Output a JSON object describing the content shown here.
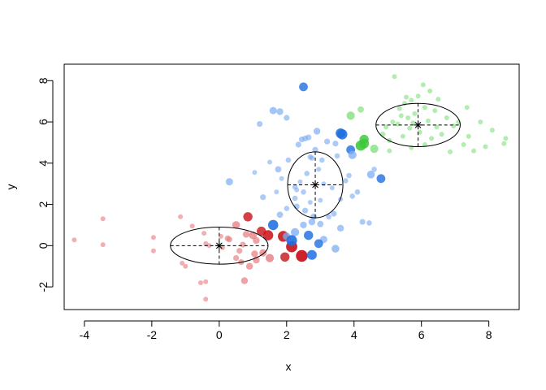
{
  "chart_data": {
    "type": "scatter",
    "xlabel": "x",
    "ylabel": "y",
    "xlim": [
      -4.6,
      8.9
    ],
    "ylim": [
      -3.1,
      8.8
    ],
    "xticks": [
      "-4",
      "-2",
      "0",
      "2",
      "4",
      "6",
      "8"
    ],
    "yticks": [
      "-2",
      "0",
      "2",
      "4",
      "6",
      "8"
    ],
    "xtick_values": [
      -4,
      -2,
      0,
      2,
      4,
      6,
      8
    ],
    "ytick_values": [
      -2,
      0,
      2,
      4,
      6,
      8
    ],
    "grid": false,
    "colors": {
      "red_light": "#E8797D",
      "red_dark": "#C9161D",
      "blue_light": "#7FAEF2",
      "blue_dark": "#1F6FE0",
      "green_light": "#7EE07C",
      "green_dark": "#3CC83A"
    },
    "ellipses": [
      {
        "center": [
          0.0,
          0.0
        ],
        "semi_x": 1.45,
        "semi_y": 0.9
      },
      {
        "center": [
          2.85,
          2.95
        ],
        "semi_x": 0.82,
        "semi_y": 1.6
      },
      {
        "center": [
          5.9,
          5.85
        ],
        "semi_x": 1.25,
        "semi_y": 1.05
      }
    ],
    "series": [
      {
        "group": "red",
        "points": [
          [
            -4.3,
            0.28,
            0.3
          ],
          [
            -3.45,
            1.3,
            0.3
          ],
          [
            -3.45,
            0.05,
            0.3
          ],
          [
            -1.95,
            0.4,
            0.3
          ],
          [
            -1.95,
            -0.25,
            0.3
          ],
          [
            -1.15,
            1.4,
            0.3
          ],
          [
            -1.1,
            -0.85,
            0.3
          ],
          [
            -1.0,
            -1.0,
            0.3
          ],
          [
            -0.8,
            0.95,
            0.3
          ],
          [
            -0.45,
            0.6,
            0.3
          ],
          [
            -0.4,
            0.1,
            0.3
          ],
          [
            -0.3,
            0.0,
            0.3
          ],
          [
            -0.55,
            -1.8,
            0.3
          ],
          [
            -0.4,
            -1.75,
            0.3
          ],
          [
            -0.4,
            -2.6,
            0.3
          ],
          [
            0.05,
            0.45,
            0.3
          ],
          [
            0.1,
            -0.1,
            0.3
          ],
          [
            0.25,
            0.35,
            0.4
          ],
          [
            0.3,
            0.3,
            0.4
          ],
          [
            0.5,
            -0.6,
            0.4
          ],
          [
            0.6,
            -0.25,
            0.4
          ],
          [
            0.65,
            -0.8,
            0.4
          ],
          [
            0.7,
            0.05,
            0.4
          ],
          [
            0.75,
            -1.7,
            0.5
          ],
          [
            0.8,
            0.55,
            0.5
          ],
          [
            0.9,
            -1.0,
            0.5
          ],
          [
            1.05,
            -0.4,
            0.5
          ],
          [
            1.1,
            -0.7,
            0.5
          ],
          [
            1.1,
            0.25,
            0.5
          ],
          [
            1.3,
            -0.35,
            0.55
          ],
          [
            0.5,
            1.0,
            0.6
          ],
          [
            0.85,
            1.4,
            0.75
          ],
          [
            1.0,
            0.5,
            0.6
          ],
          [
            1.25,
            0.7,
            0.75
          ],
          [
            1.5,
            -0.6,
            0.65
          ],
          [
            1.45,
            0.5,
            0.85
          ],
          [
            1.9,
            0.45,
            0.9
          ],
          [
            1.95,
            -0.55,
            0.75
          ],
          [
            2.15,
            -0.05,
            0.95
          ],
          [
            2.45,
            -0.5,
            1.0
          ]
        ]
      },
      {
        "group": "blue",
        "points": [
          [
            0.3,
            3.1,
            0.55
          ],
          [
            1.05,
            3.55,
            0.3
          ],
          [
            1.2,
            5.9,
            0.4
          ],
          [
            1.3,
            2.35,
            0.4
          ],
          [
            1.5,
            4.05,
            0.3
          ],
          [
            1.6,
            6.55,
            0.55
          ],
          [
            1.75,
            3.7,
            0.45
          ],
          [
            1.8,
            6.5,
            0.5
          ],
          [
            1.85,
            3.25,
            0.3
          ],
          [
            2.0,
            6.2,
            0.4
          ],
          [
            2.05,
            4.15,
            0.35
          ],
          [
            2.25,
            2.85,
            0.35
          ],
          [
            2.35,
            4.9,
            0.4
          ],
          [
            2.45,
            5.15,
            0.4
          ],
          [
            2.55,
            5.2,
            0.4
          ],
          [
            2.65,
            5.25,
            0.4
          ],
          [
            2.7,
            4.3,
            0.35
          ],
          [
            2.75,
            4.25,
            0.35
          ],
          [
            2.85,
            4.65,
            0.4
          ],
          [
            2.9,
            5.55,
            0.5
          ],
          [
            2.95,
            3.7,
            0.3
          ],
          [
            3.05,
            4.15,
            0.35
          ],
          [
            3.2,
            5.05,
            0.4
          ],
          [
            3.35,
            2.8,
            0.3
          ],
          [
            3.45,
            4.95,
            0.4
          ],
          [
            3.5,
            4.35,
            0.35
          ],
          [
            3.6,
            2.25,
            0.3
          ],
          [
            3.75,
            3.15,
            0.35
          ],
          [
            3.85,
            3.4,
            0.35
          ],
          [
            3.95,
            2.4,
            0.35
          ],
          [
            4.1,
            2.6,
            0.35
          ],
          [
            4.25,
            1.15,
            0.4
          ],
          [
            4.45,
            1.1,
            0.35
          ],
          [
            4.6,
            3.7,
            0.35
          ],
          [
            2.25,
            2.3,
            0.35
          ],
          [
            2.5,
            2.6,
            0.35
          ],
          [
            2.6,
            3.5,
            0.35
          ],
          [
            3.0,
            2.2,
            0.3
          ],
          [
            3.1,
            3.0,
            0.3
          ],
          [
            2.7,
            2.1,
            0.3
          ],
          [
            2.4,
            3.1,
            0.3
          ],
          [
            1.7,
            2.6,
            0.3
          ],
          [
            2.0,
            1.8,
            0.35
          ],
          [
            2.3,
            1.9,
            0.4
          ],
          [
            2.55,
            1.7,
            0.4
          ],
          [
            2.8,
            1.4,
            0.45
          ],
          [
            2.5,
            1.0,
            0.5
          ],
          [
            3.0,
            1.05,
            0.45
          ],
          [
            3.25,
            1.4,
            0.35
          ],
          [
            2.75,
            1.15,
            0.5
          ],
          [
            3.4,
            1.55,
            0.4
          ],
          [
            3.1,
            0.3,
            0.55
          ],
          [
            3.6,
            0.85,
            0.5
          ],
          [
            1.8,
            1.5,
            0.45
          ],
          [
            2.25,
            0.65,
            0.65
          ],
          [
            2.65,
            0.5,
            0.75
          ],
          [
            2.95,
            0.1,
            0.7
          ],
          [
            3.45,
            -0.15,
            0.6
          ],
          [
            2.0,
            0.45,
            0.6
          ],
          [
            2.75,
            -0.45,
            0.8
          ],
          [
            2.15,
            0.25,
            0.9
          ],
          [
            1.6,
            1.0,
            0.85
          ],
          [
            3.6,
            5.45,
            0.8
          ],
          [
            3.65,
            5.4,
            0.85
          ],
          [
            4.5,
            3.45,
            0.6
          ],
          [
            4.8,
            3.25,
            0.7
          ],
          [
            3.9,
            4.65,
            0.7
          ],
          [
            3.95,
            4.4,
            0.65
          ],
          [
            2.5,
            7.7,
            0.7
          ],
          [
            2.3,
            2.7,
            0.3
          ]
        ]
      },
      {
        "group": "green",
        "points": [
          [
            3.9,
            6.3,
            0.65
          ],
          [
            4.2,
            6.6,
            0.45
          ],
          [
            4.3,
            5.15,
            0.75
          ],
          [
            4.2,
            4.85,
            0.85
          ],
          [
            4.3,
            4.95,
            0.8
          ],
          [
            4.6,
            4.7,
            0.65
          ],
          [
            4.85,
            5.4,
            0.35
          ],
          [
            5.05,
            5.1,
            0.3
          ],
          [
            5.05,
            4.6,
            0.3
          ],
          [
            5.15,
            6.0,
            0.3
          ],
          [
            5.2,
            8.2,
            0.3
          ],
          [
            5.3,
            5.9,
            0.3
          ],
          [
            5.4,
            6.3,
            0.3
          ],
          [
            5.45,
            5.3,
            0.3
          ],
          [
            5.5,
            6.9,
            0.3
          ],
          [
            5.55,
            7.2,
            0.3
          ],
          [
            5.6,
            6.2,
            0.3
          ],
          [
            5.65,
            5.7,
            0.3
          ],
          [
            5.7,
            7.05,
            0.3
          ],
          [
            5.75,
            5.95,
            0.3
          ],
          [
            5.8,
            6.4,
            0.3
          ],
          [
            5.9,
            7.25,
            0.3
          ],
          [
            5.95,
            5.5,
            0.3
          ],
          [
            6.05,
            7.8,
            0.3
          ],
          [
            6.1,
            6.7,
            0.3
          ],
          [
            6.2,
            6.05,
            0.3
          ],
          [
            6.25,
            7.5,
            0.3
          ],
          [
            6.3,
            5.2,
            0.3
          ],
          [
            6.4,
            6.55,
            0.3
          ],
          [
            6.45,
            5.75,
            0.3
          ],
          [
            6.6,
            5.4,
            0.3
          ],
          [
            6.75,
            6.2,
            0.3
          ],
          [
            6.85,
            4.55,
            0.3
          ],
          [
            6.95,
            5.8,
            0.3
          ],
          [
            7.1,
            6.0,
            0.3
          ],
          [
            7.25,
            4.9,
            0.3
          ],
          [
            7.35,
            6.7,
            0.3
          ],
          [
            7.4,
            5.3,
            0.3
          ],
          [
            7.55,
            4.6,
            0.3
          ],
          [
            7.75,
            6.0,
            0.3
          ],
          [
            7.9,
            4.8,
            0.3
          ],
          [
            8.1,
            5.6,
            0.3
          ],
          [
            8.45,
            4.95,
            0.3
          ],
          [
            8.5,
            5.2,
            0.3
          ],
          [
            5.7,
            4.75,
            0.3
          ],
          [
            6.1,
            4.9,
            0.3
          ],
          [
            4.95,
            5.75,
            0.3
          ],
          [
            5.35,
            6.65,
            0.3
          ],
          [
            6.5,
            7.1,
            0.3
          ]
        ]
      }
    ]
  }
}
